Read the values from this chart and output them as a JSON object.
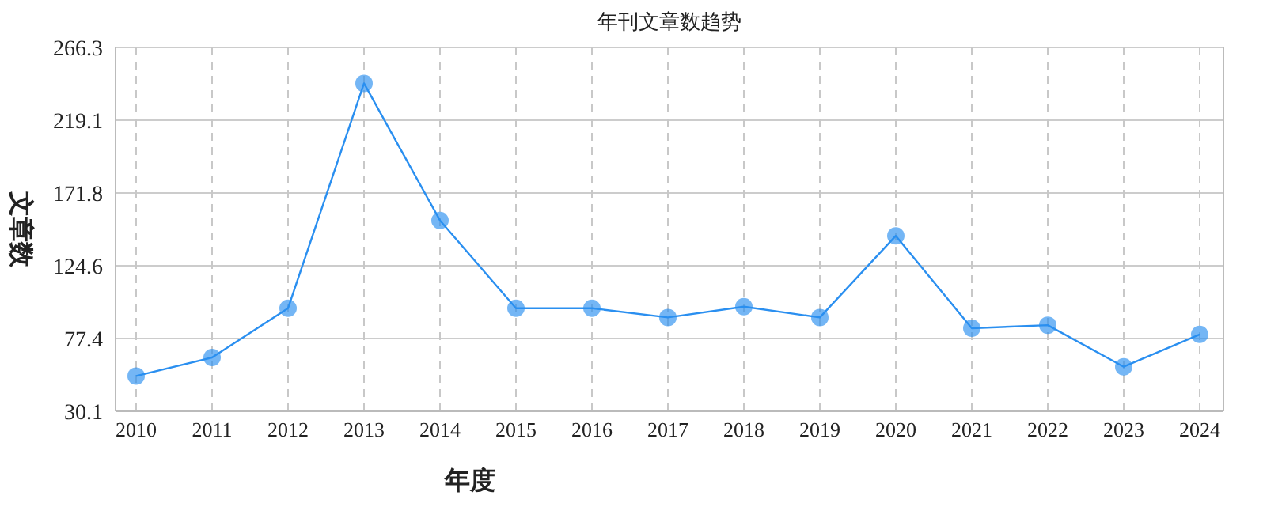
{
  "chart_data": {
    "type": "line",
    "title": "年刊文章数趋势",
    "xlabel": "年度",
    "ylabel": "文章数",
    "categories": [
      "2010",
      "2011",
      "2012",
      "2013",
      "2014",
      "2015",
      "2016",
      "2017",
      "2018",
      "2019",
      "2020",
      "2021",
      "2022",
      "2023",
      "2024"
    ],
    "series": [
      {
        "color": "#2a8ff0",
        "values": [
          53,
          65,
          97,
          243,
          154,
          97,
          97,
          91,
          98,
          91,
          144,
          84,
          86,
          59,
          80
        ]
      }
    ],
    "ylim": [
      30.1,
      266.3
    ],
    "yticks": [
      {
        "value": 30.1,
        "label": "30.1"
      },
      {
        "value": 77.4,
        "label": "77.4"
      },
      {
        "value": 124.6,
        "label": "124.6"
      },
      {
        "value": 171.8,
        "label": "171.8"
      },
      {
        "value": 219.1,
        "label": "219.1"
      },
      {
        "value": 266.3,
        "label": "266.3"
      }
    ],
    "grid": true,
    "marker": "circle",
    "line_style": "solid"
  }
}
